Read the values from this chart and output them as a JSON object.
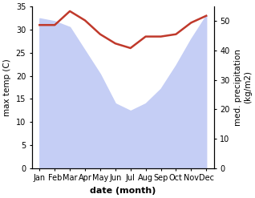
{
  "months": [
    "Jan",
    "Feb",
    "Mar",
    "Apr",
    "May",
    "Jun",
    "Jul",
    "Aug",
    "Sep",
    "Oct",
    "Nov",
    "Dec"
  ],
  "month_indices": [
    0,
    1,
    2,
    3,
    4,
    5,
    6,
    7,
    8,
    9,
    10,
    11
  ],
  "temp": [
    31.0,
    31.0,
    34.0,
    32.0,
    29.0,
    27.0,
    26.0,
    28.5,
    28.5,
    29.0,
    31.5,
    33.0
  ],
  "precip": [
    51,
    50,
    48,
    40,
    32,
    22,
    19.5,
    22,
    27,
    35,
    44,
    52
  ],
  "temp_color": "#c0392b",
  "precip_fill_color": "#c5cef5",
  "temp_ylim": [
    0,
    35
  ],
  "precip_ylim": [
    0,
    55
  ],
  "temp_yticks": [
    0,
    5,
    10,
    15,
    20,
    25,
    30,
    35
  ],
  "precip_yticks": [
    0,
    10,
    20,
    30,
    40,
    50
  ],
  "xlabel": "date (month)",
  "ylabel_left": "max temp (C)",
  "ylabel_right": "med. precipitation\n(kg/m2)"
}
